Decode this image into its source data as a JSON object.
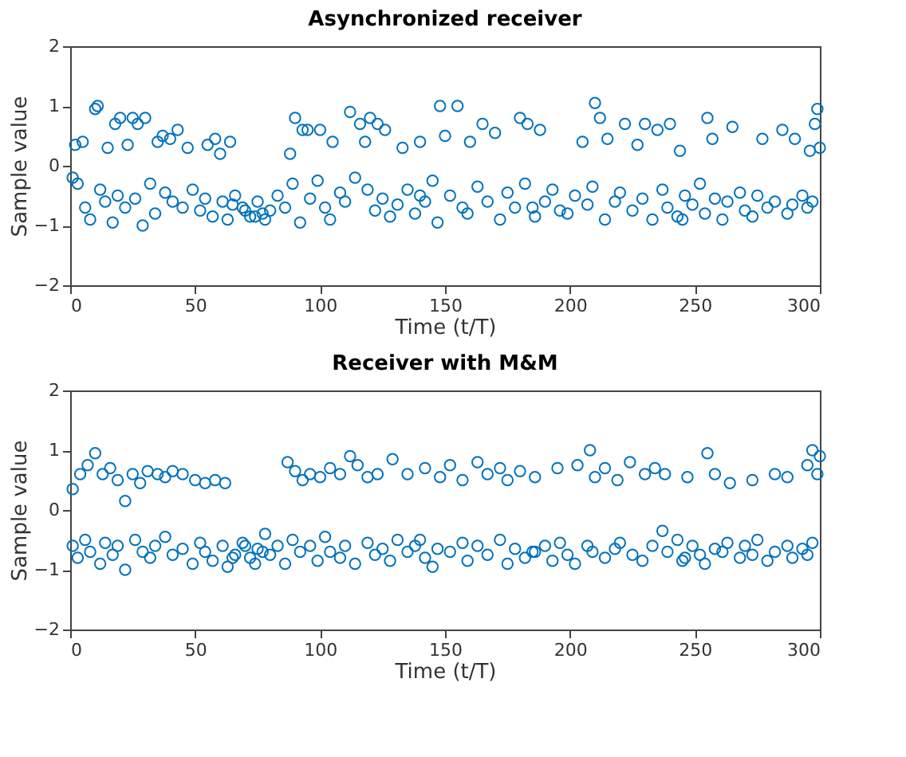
{
  "chart_data": [
    {
      "type": "scatter",
      "title": "Asynchronized receiver",
      "xlabel": "Time (t/T)",
      "ylabel": "Sample value",
      "color": "#0072bd",
      "marker": "circle",
      "grid": false,
      "xlim": [
        0,
        300
      ],
      "ylim": [
        -2,
        2
      ],
      "xticks": [
        0,
        50,
        100,
        150,
        200,
        250,
        300
      ],
      "yticks": [
        -2,
        -1,
        0,
        1,
        2
      ],
      "x": [
        2,
        5,
        10,
        11,
        15,
        18,
        20,
        23,
        25,
        27,
        30,
        35,
        37,
        40,
        43,
        47,
        55,
        58,
        60,
        64,
        88,
        90,
        93,
        95,
        100,
        105,
        112,
        116,
        118,
        120,
        123,
        126,
        133,
        140,
        148,
        150,
        155,
        160,
        165,
        170,
        180,
        183,
        188,
        205,
        210,
        212,
        215,
        222,
        227,
        230,
        235,
        240,
        244,
        255,
        257,
        265,
        277,
        285,
        290,
        296,
        298,
        299,
        300,
        1,
        3,
        6,
        8,
        12,
        14,
        17,
        19,
        22,
        26,
        29,
        32,
        34,
        38,
        41,
        45,
        49,
        52,
        54,
        57,
        61,
        63,
        66,
        69,
        72,
        75,
        78,
        80,
        83,
        86,
        89,
        92,
        96,
        99,
        102,
        104,
        108,
        110,
        114,
        119,
        122,
        125,
        128,
        131,
        135,
        138,
        142,
        145,
        147,
        152,
        157,
        159,
        163,
        167,
        172,
        175,
        178,
        182,
        186,
        190,
        193,
        196,
        199,
        202,
        207,
        209,
        214,
        218,
        220,
        225,
        229,
        233,
        237,
        239,
        243,
        246,
        249,
        252,
        254,
        258,
        261,
        263,
        268,
        270,
        273,
        275,
        279,
        282,
        287,
        289,
        293,
        295,
        297,
        74,
        77,
        70,
        65,
        140,
        185,
        245
      ],
      "values": [
        0.35,
        0.4,
        0.95,
        1.0,
        0.3,
        0.7,
        0.8,
        0.35,
        0.8,
        0.7,
        0.8,
        0.4,
        0.5,
        0.45,
        0.6,
        0.3,
        0.35,
        0.45,
        0.2,
        0.4,
        0.2,
        0.8,
        0.6,
        0.6,
        0.6,
        0.4,
        0.9,
        0.7,
        0.4,
        0.8,
        0.7,
        0.6,
        0.3,
        0.4,
        1.0,
        0.5,
        1.0,
        0.4,
        0.7,
        0.55,
        0.8,
        0.7,
        0.6,
        0.4,
        1.05,
        0.8,
        0.45,
        0.7,
        0.35,
        0.7,
        0.6,
        0.7,
        0.25,
        0.8,
        0.45,
        0.65,
        0.45,
        0.6,
        0.45,
        0.25,
        0.7,
        0.95,
        0.3,
        -0.2,
        -0.3,
        -0.7,
        -0.9,
        -0.4,
        -0.6,
        -0.95,
        -0.5,
        -0.7,
        -0.55,
        -1.0,
        -0.3,
        -0.8,
        -0.45,
        -0.6,
        -0.7,
        -0.4,
        -0.75,
        -0.55,
        -0.85,
        -0.6,
        -0.9,
        -0.5,
        -0.7,
        -0.85,
        -0.6,
        -0.9,
        -0.75,
        -0.5,
        -0.7,
        -0.3,
        -0.95,
        -0.55,
        -0.25,
        -0.7,
        -0.9,
        -0.45,
        -0.6,
        -0.2,
        -0.4,
        -0.75,
        -0.55,
        -0.85,
        -0.65,
        -0.4,
        -0.8,
        -0.6,
        -0.25,
        -0.95,
        -0.5,
        -0.7,
        -0.8,
        -0.35,
        -0.6,
        -0.9,
        -0.45,
        -0.7,
        -0.3,
        -0.85,
        -0.6,
        -0.4,
        -0.75,
        -0.8,
        -0.5,
        -0.65,
        -0.35,
        -0.9,
        -0.6,
        -0.45,
        -0.75,
        -0.55,
        -0.9,
        -0.4,
        -0.7,
        -0.85,
        -0.5,
        -0.65,
        -0.3,
        -0.8,
        -0.55,
        -0.9,
        -0.6,
        -0.45,
        -0.75,
        -0.85,
        -0.5,
        -0.7,
        -0.6,
        -0.8,
        -0.65,
        -0.5,
        -0.7,
        -0.6,
        -0.85,
        -0.8,
        -0.75,
        -0.65,
        -0.5,
        -0.7,
        -0.9
      ]
    },
    {
      "type": "scatter",
      "title": "Receiver with M&M",
      "xlabel": "Time (t/T)",
      "ylabel": "Sample value",
      "color": "#0072bd",
      "marker": "circle",
      "grid": false,
      "xlim": [
        0,
        300
      ],
      "ylim": [
        -2,
        2
      ],
      "xticks": [
        0,
        50,
        100,
        150,
        200,
        250,
        300
      ],
      "yticks": [
        -2,
        -1,
        0,
        1,
        2
      ],
      "x": [
        1,
        4,
        7,
        10,
        13,
        16,
        19,
        22,
        25,
        28,
        31,
        35,
        38,
        41,
        45,
        50,
        54,
        58,
        62,
        87,
        90,
        93,
        96,
        100,
        104,
        108,
        112,
        115,
        119,
        123,
        129,
        135,
        142,
        148,
        152,
        157,
        163,
        167,
        172,
        175,
        180,
        186,
        195,
        203,
        208,
        210,
        214,
        219,
        224,
        230,
        234,
        238,
        247,
        255,
        258,
        264,
        273,
        282,
        287,
        295,
        297,
        299,
        300,
        1,
        3,
        6,
        8,
        12,
        14,
        17,
        19,
        22,
        26,
        29,
        32,
        34,
        38,
        41,
        45,
        49,
        52,
        54,
        57,
        61,
        63,
        66,
        69,
        72,
        75,
        78,
        80,
        83,
        86,
        89,
        92,
        96,
        99,
        102,
        104,
        108,
        110,
        114,
        119,
        122,
        125,
        128,
        131,
        135,
        138,
        142,
        145,
        147,
        152,
        157,
        159,
        163,
        167,
        172,
        175,
        178,
        182,
        186,
        190,
        193,
        196,
        199,
        202,
        207,
        209,
        214,
        218,
        220,
        225,
        229,
        233,
        237,
        239,
        243,
        246,
        249,
        252,
        254,
        258,
        261,
        263,
        268,
        270,
        273,
        275,
        279,
        282,
        287,
        289,
        293,
        295,
        297,
        74,
        77,
        70,
        65,
        140,
        185,
        245
      ],
      "values": [
        0.35,
        0.6,
        0.75,
        0.95,
        0.6,
        0.7,
        0.5,
        0.15,
        0.6,
        0.45,
        0.65,
        0.6,
        0.55,
        0.65,
        0.6,
        0.5,
        0.45,
        0.5,
        0.45,
        0.8,
        0.65,
        0.5,
        0.6,
        0.55,
        0.7,
        0.6,
        0.9,
        0.75,
        0.55,
        0.6,
        0.85,
        0.6,
        0.7,
        0.55,
        0.75,
        0.5,
        0.8,
        0.6,
        0.7,
        0.5,
        0.65,
        0.55,
        0.7,
        0.75,
        1.0,
        0.55,
        0.7,
        0.5,
        0.8,
        0.6,
        0.7,
        0.6,
        0.55,
        0.95,
        0.6,
        0.45,
        0.5,
        0.6,
        0.55,
        0.75,
        1.0,
        0.6,
        0.9,
        -0.6,
        -0.8,
        -0.5,
        -0.7,
        -0.9,
        -0.55,
        -0.75,
        -0.6,
        -1.0,
        -0.5,
        -0.7,
        -0.8,
        -0.6,
        -0.45,
        -0.75,
        -0.65,
        -0.9,
        -0.55,
        -0.7,
        -0.85,
        -0.6,
        -0.95,
        -0.75,
        -0.55,
        -0.8,
        -0.65,
        -0.4,
        -0.75,
        -0.6,
        -0.9,
        -0.5,
        -0.7,
        -0.6,
        -0.85,
        -0.45,
        -0.7,
        -0.8,
        -0.6,
        -0.9,
        -0.55,
        -0.75,
        -0.65,
        -0.85,
        -0.5,
        -0.7,
        -0.6,
        -0.8,
        -0.95,
        -0.65,
        -0.7,
        -0.55,
        -0.85,
        -0.6,
        -0.75,
        -0.5,
        -0.9,
        -0.65,
        -0.8,
        -0.7,
        -0.6,
        -0.85,
        -0.55,
        -0.75,
        -0.9,
        -0.6,
        -0.7,
        -0.8,
        -0.65,
        -0.55,
        -0.75,
        -0.85,
        -0.6,
        -0.35,
        -0.7,
        -0.5,
        -0.8,
        -0.6,
        -0.75,
        -0.9,
        -0.65,
        -0.7,
        -0.55,
        -0.8,
        -0.6,
        -0.75,
        -0.5,
        -0.85,
        -0.7,
        -0.6,
        -0.8,
        -0.65,
        -0.75,
        -0.55,
        -0.9,
        -0.7,
        -0.6,
        -0.8,
        -0.5,
        -0.7,
        -0.85
      ]
    }
  ]
}
